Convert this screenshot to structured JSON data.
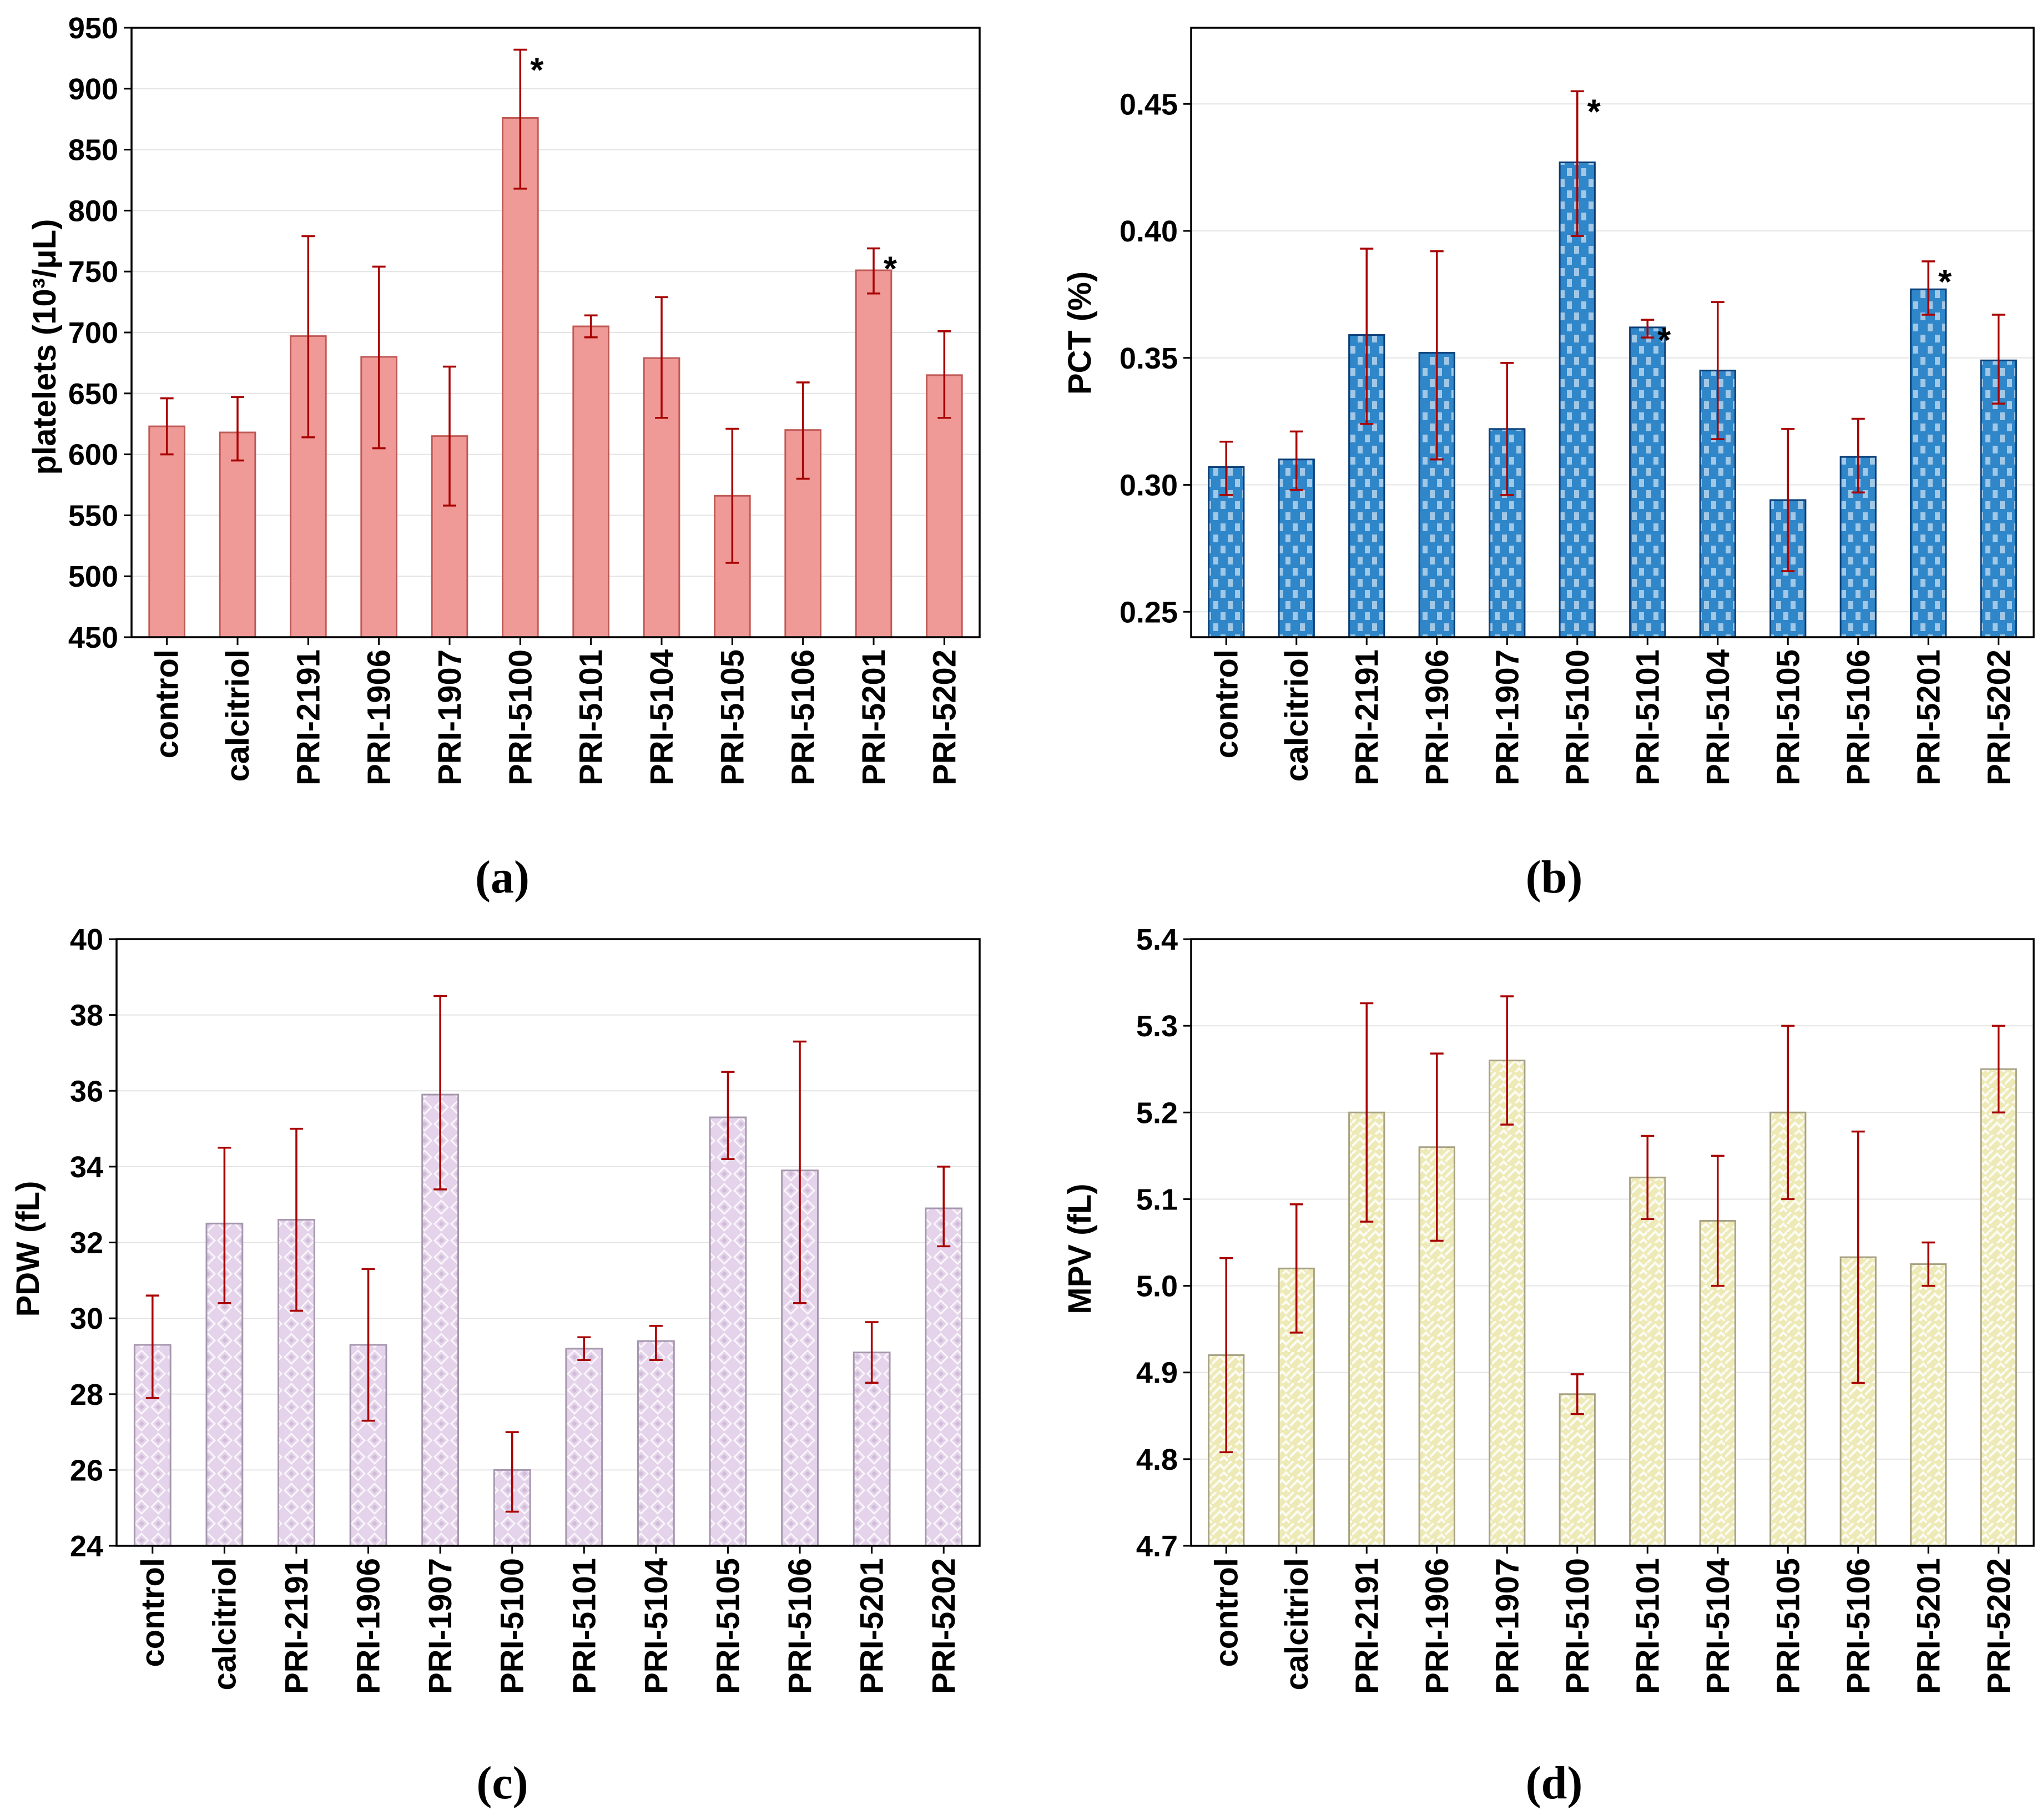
{
  "colors": {
    "error_bar": "#a80000",
    "gridline": "#e4e4e4",
    "axis": "#000000"
  },
  "chart_data": [
    {
      "type": "bar",
      "panel": "a",
      "panel_label": "(a)",
      "ylabel": "platelets (10³/μL)",
      "ylim": [
        450,
        950
      ],
      "yticks": [
        "450",
        "500",
        "550",
        "600",
        "650",
        "700",
        "750",
        "800",
        "850",
        "900",
        "950"
      ],
      "categories": [
        "control",
        "calcitriol",
        "PRI-2191",
        "PRI-1906",
        "PRI-1907",
        "PRI-5100",
        "PRI-5101",
        "PRI-5104",
        "PRI-5105",
        "PRI-5106",
        "PRI-5201",
        "PRI-5202"
      ],
      "values": [
        623,
        618,
        697,
        680,
        615,
        876,
        705,
        679,
        566,
        620,
        751,
        665
      ],
      "error_low": [
        600,
        595,
        614,
        605,
        558,
        818,
        696,
        630,
        511,
        580,
        732,
        630
      ],
      "error_high": [
        646,
        647,
        779,
        754,
        672,
        932,
        714,
        729,
        621,
        659,
        769,
        701
      ],
      "significant": [
        false,
        false,
        false,
        false,
        false,
        true,
        false,
        false,
        false,
        false,
        true,
        false
      ],
      "sig_marker": "*",
      "fill": "#ef9a97",
      "stroke": "#c05a56",
      "pattern": "solid"
    },
    {
      "type": "bar",
      "panel": "b",
      "panel_label": "(b)",
      "ylabel": "PCT (%)",
      "ylim": [
        0.24,
        0.48
      ],
      "yticks": [
        "0.25",
        "0.30",
        "0.35",
        "0.40",
        "0.45"
      ],
      "tick_values": [
        0.25,
        0.3,
        0.35,
        0.4,
        0.45
      ],
      "categories": [
        "control",
        "calcitriol",
        "PRI-2191",
        "PRI-1906",
        "PRI-1907",
        "PRI-5100",
        "PRI-5101",
        "PRI-5104",
        "PRI-5105",
        "PRI-5106",
        "PRI-5201",
        "PRI-5202"
      ],
      "values": [
        0.307,
        0.31,
        0.359,
        0.352,
        0.322,
        0.427,
        0.362,
        0.345,
        0.294,
        0.311,
        0.377,
        0.349
      ],
      "error_low": [
        0.296,
        0.298,
        0.324,
        0.31,
        0.296,
        0.398,
        0.358,
        0.318,
        0.266,
        0.297,
        0.367,
        0.332
      ],
      "error_high": [
        0.317,
        0.321,
        0.393,
        0.392,
        0.348,
        0.455,
        0.365,
        0.372,
        0.322,
        0.326,
        0.388,
        0.367
      ],
      "significant": [
        false,
        false,
        false,
        false,
        false,
        true,
        true,
        false,
        false,
        false,
        true,
        false
      ],
      "sig_marker": "*",
      "fill": "#2f86c8",
      "stroke": "#0b3f78",
      "pattern": "dashes"
    },
    {
      "type": "bar",
      "panel": "c",
      "panel_label": "(c)",
      "ylabel": "PDW (fL)",
      "ylim": [
        24,
        40
      ],
      "yticks": [
        "24",
        "26",
        "28",
        "30",
        "32",
        "34",
        "36",
        "38",
        "40"
      ],
      "categories": [
        "control",
        "calcitriol",
        "PRI-2191",
        "PRI-1906",
        "PRI-1907",
        "PRI-5100",
        "PRI-5101",
        "PRI-5104",
        "PRI-5105",
        "PRI-5106",
        "PRI-5201",
        "PRI-5202"
      ],
      "values": [
        29.3,
        32.5,
        32.6,
        29.3,
        35.9,
        26.0,
        29.2,
        29.4,
        35.3,
        33.9,
        29.1,
        32.9
      ],
      "error_low": [
        27.9,
        30.4,
        30.2,
        27.3,
        33.4,
        24.9,
        28.9,
        28.9,
        34.2,
        30.4,
        28.3,
        31.9
      ],
      "error_high": [
        30.6,
        34.5,
        35.0,
        31.3,
        38.5,
        27.0,
        29.5,
        29.8,
        36.5,
        37.3,
        29.9,
        34.0
      ],
      "significant": [
        false,
        false,
        false,
        false,
        false,
        false,
        false,
        false,
        false,
        false,
        false,
        false
      ],
      "fill": "#e4d3ea",
      "stroke": "#a597ad",
      "pattern": "diamond"
    },
    {
      "type": "bar",
      "panel": "d",
      "panel_label": "(d)",
      "ylabel": "MPV (fL)",
      "ylim": [
        4.7,
        5.4
      ],
      "yticks": [
        "4.7",
        "4.8",
        "4.9",
        "5.0",
        "5.1",
        "5.2",
        "5.3",
        "5.4"
      ],
      "categories": [
        "control",
        "calcitriol",
        "PRI-2191",
        "PRI-1906",
        "PRI-1907",
        "PRI-5100",
        "PRI-5101",
        "PRI-5104",
        "PRI-5105",
        "PRI-5106",
        "PRI-5201",
        "PRI-5202"
      ],
      "values": [
        4.92,
        5.02,
        5.2,
        5.16,
        5.26,
        4.875,
        5.125,
        5.075,
        5.2,
        5.033,
        5.025,
        5.25
      ],
      "error_low": [
        4.808,
        4.946,
        5.074,
        5.052,
        5.186,
        4.852,
        5.077,
        5.0,
        5.1,
        4.888,
        5.0,
        5.2
      ],
      "error_high": [
        5.032,
        5.094,
        5.326,
        5.268,
        5.334,
        4.898,
        5.173,
        5.15,
        5.3,
        5.178,
        5.05,
        5.3
      ],
      "significant": [
        false,
        false,
        false,
        false,
        false,
        false,
        false,
        false,
        false,
        false,
        false,
        false
      ],
      "fill": "#eeeab8",
      "stroke": "#a8a284",
      "pattern": "weave"
    }
  ]
}
